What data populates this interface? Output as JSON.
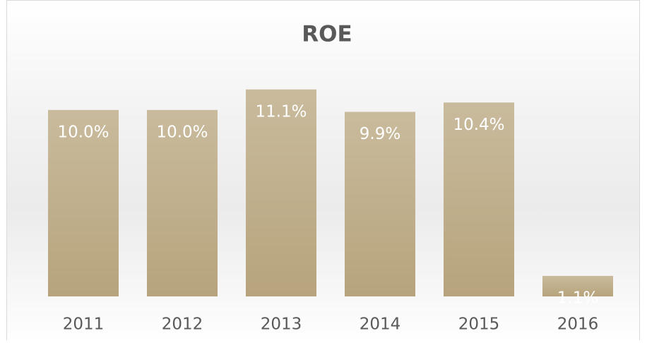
{
  "chart_data": {
    "type": "bar",
    "title": "ROE",
    "categories": [
      "2011",
      "2012",
      "2013",
      "2014",
      "2015",
      "2016"
    ],
    "values": [
      10.0,
      10.0,
      11.1,
      9.9,
      10.4,
      1.1
    ],
    "value_labels": [
      "10.0%",
      "10.0%",
      "11.1%",
      "9.9%",
      "10.4%",
      "1.1%"
    ],
    "color": "#b7a47c",
    "ylim": [
      0,
      12
    ]
  }
}
